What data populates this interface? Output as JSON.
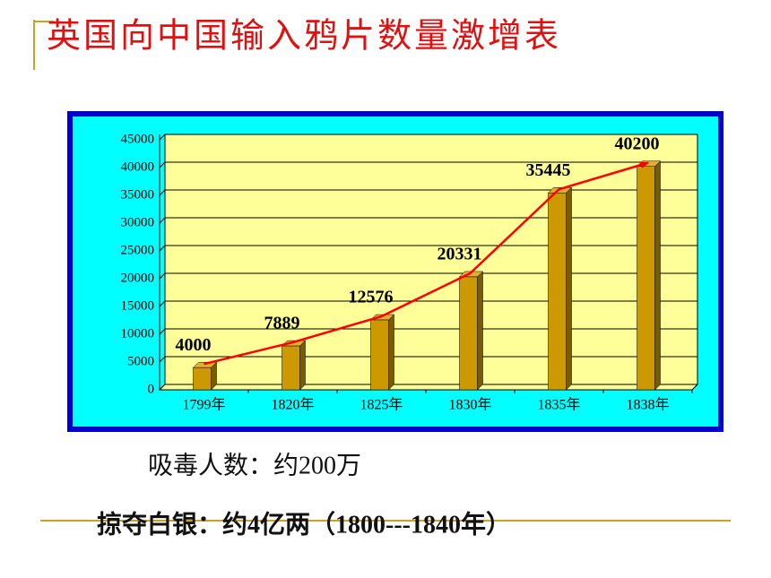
{
  "chart_data": {
    "type": "bar",
    "title": "英国向中国输入鸦片数量激增表",
    "categories": [
      "1799年",
      "1820年",
      "1825年",
      "1830年",
      "1835年",
      "1838年"
    ],
    "values": [
      4000,
      7889,
      12576,
      20331,
      35445,
      40200
    ],
    "color": "#cc9900",
    "trend_color": "#ff0000",
    "ylim": [
      0,
      45000
    ],
    "yticks": [
      0,
      5000,
      10000,
      15000,
      20000,
      25000,
      30000,
      35000,
      40000,
      45000
    ],
    "grid": true,
    "annotations": [
      "吸毒人数：约200万",
      "掠夺白银：约4亿两（1800---1840年）"
    ]
  }
}
